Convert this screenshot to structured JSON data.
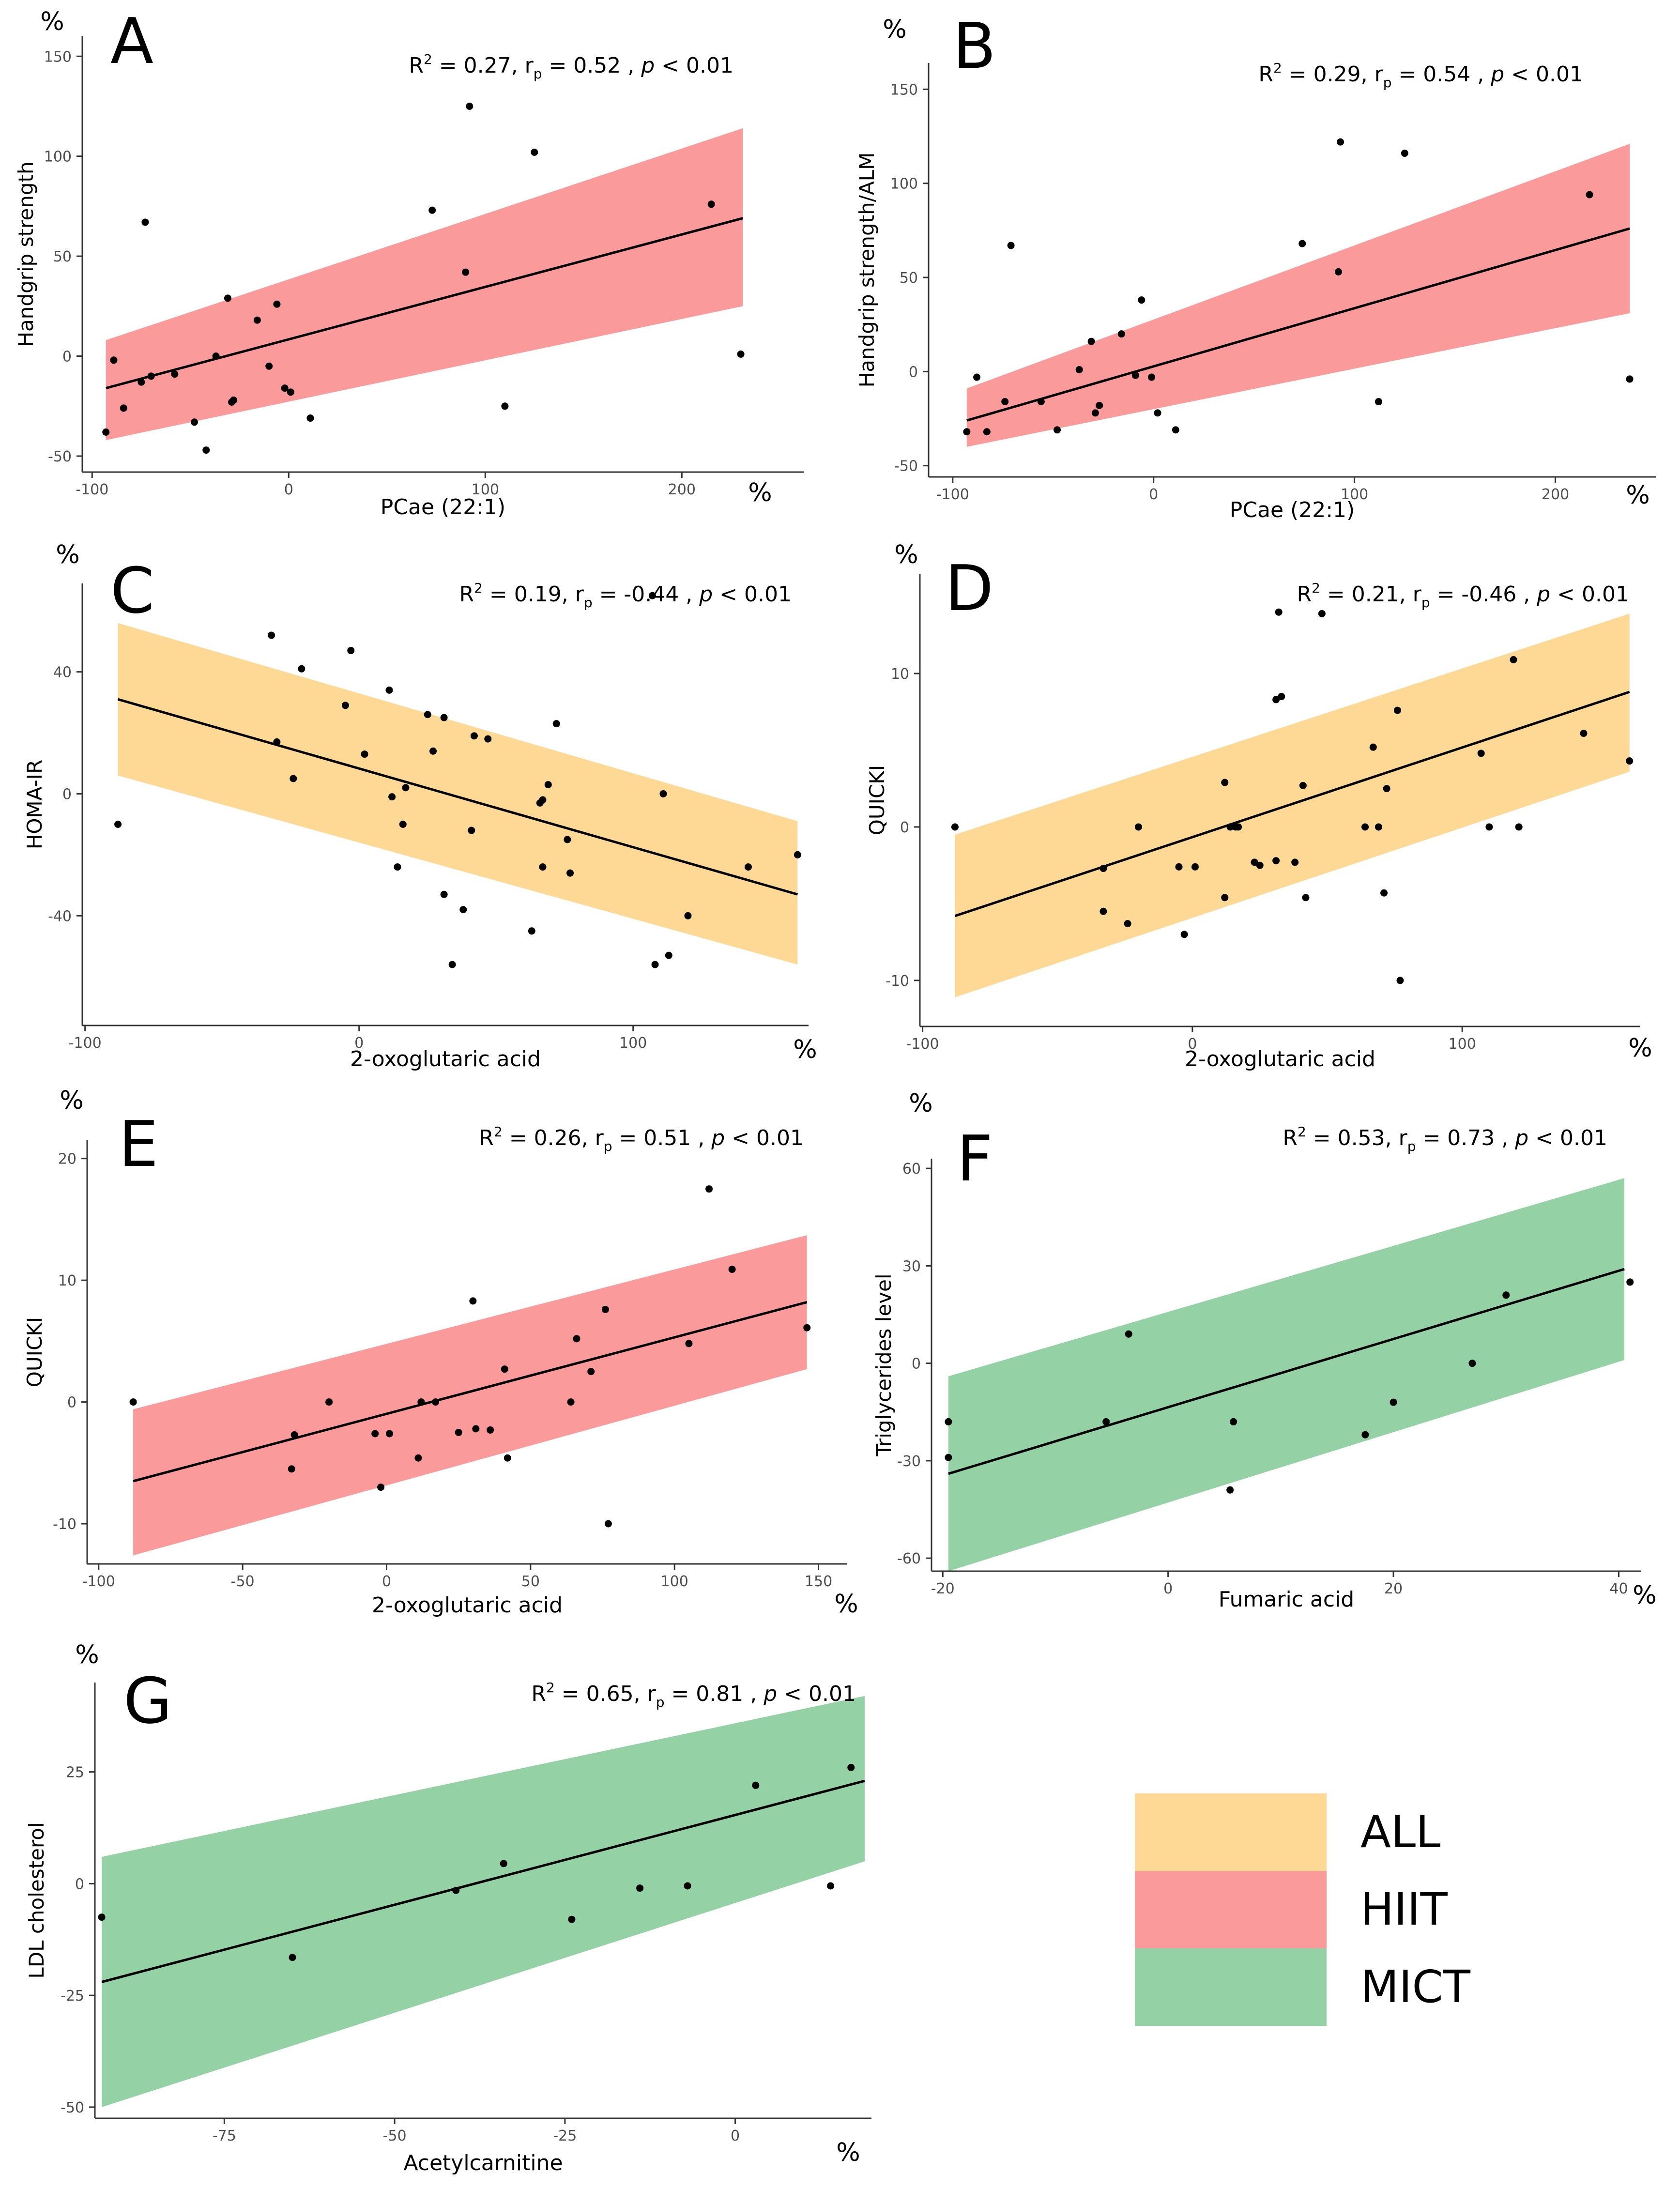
{
  "colors": {
    "ALL": "#FDD995",
    "HIIT": "#FA9A9A",
    "MICT": "#94D2A6",
    "line": "#000000",
    "point": "#000000"
  },
  "legend": {
    "items": [
      {
        "label": "ALL",
        "color": "#FDD995"
      },
      {
        "label": "HIIT",
        "color": "#FA9A9A"
      },
      {
        "label": "MICT",
        "color": "#94D2A6"
      }
    ]
  },
  "chart_data": [
    {
      "type": "scatter",
      "panel": "A",
      "group": "HIIT",
      "title": "",
      "xlabel": "PCae (22:1)",
      "ylabel": "Handgrip strength",
      "unit_x": "%",
      "unit_y": "%",
      "stats": {
        "r2": "0.27",
        "rp": "0.52",
        "p": "< 0.01"
      },
      "xlim": [
        -105,
        262
      ],
      "ylim": [
        -58,
        160
      ],
      "xticks": [
        -100,
        0,
        100,
        200
      ],
      "yticks": [
        -50,
        0,
        50,
        100,
        150
      ],
      "fit": {
        "x": [
          -93,
          231
        ],
        "y": [
          -16,
          69
        ]
      },
      "band": {
        "x": [
          -93,
          231
        ],
        "upper": [
          8,
          114
        ],
        "lower": [
          -42,
          25
        ]
      },
      "points": {
        "x": [
          -93,
          -89,
          -84,
          -75,
          -73,
          -70,
          -58,
          -48,
          -42,
          -37,
          -31,
          -29,
          -28,
          -16,
          -10,
          -6,
          -2,
          1,
          11,
          73,
          90,
          92,
          110,
          125,
          215,
          230
        ],
        "y": [
          -38,
          -2,
          -26,
          -13,
          67,
          -10,
          -9,
          -33,
          -47,
          0,
          29,
          -23,
          -22,
          18,
          -5,
          26,
          -16,
          -18,
          -31,
          73,
          42,
          125,
          -25,
          102,
          76,
          1
        ]
      }
    },
    {
      "type": "scatter",
      "panel": "B",
      "group": "HIIT",
      "title": "",
      "xlabel": "PCae (22:1)",
      "ylabel": "Handgrip strength/ALM",
      "unit_x": "%",
      "unit_y": "%",
      "stats": {
        "r2": "0.29",
        "rp": "0.54",
        "p": "< 0.01"
      },
      "xlim": [
        -112,
        250
      ],
      "ylim": [
        -56,
        164
      ],
      "xticks": [
        -100,
        0,
        100,
        200
      ],
      "yticks": [
        -50,
        0,
        50,
        100,
        150
      ],
      "fit": {
        "x": [
          -93,
          237
        ],
        "y": [
          -26,
          76
        ]
      },
      "band": {
        "x": [
          -93,
          237
        ],
        "upper": [
          -9,
          121
        ],
        "lower": [
          -40,
          31
        ]
      },
      "points": {
        "x": [
          -93,
          -88,
          -83,
          -74,
          -71,
          -56,
          -48,
          -37,
          -31,
          -29,
          -27,
          -16,
          -9,
          -6,
          -1,
          2,
          11,
          74,
          92,
          93,
          112,
          125,
          217,
          237
        ],
        "y": [
          -32,
          -3,
          -32,
          -16,
          67,
          -16,
          -31,
          1,
          16,
          -22,
          -18,
          20,
          -2,
          38,
          -3,
          -22,
          -31,
          68,
          53,
          122,
          -16,
          116,
          94,
          -4
        ]
      }
    },
    {
      "type": "scatter",
      "panel": "C",
      "group": "ALL",
      "title": "",
      "xlabel": "2-oxoglutaric acid",
      "ylabel": "HOMA-IR",
      "unit_x": "%",
      "unit_y": "%",
      "stats": {
        "r2": "0.19",
        "rp": "-0.44",
        "p": "< 0.01"
      },
      "xlim": [
        -101,
        164
      ],
      "ylim": [
        -76,
        69
      ],
      "xticks": [
        -100,
        0,
        100
      ],
      "yticks": [
        -40,
        0,
        40
      ],
      "fit": {
        "x": [
          -88,
          160
        ],
        "y": [
          31,
          -33
        ]
      },
      "band": {
        "x": [
          -88,
          160
        ],
        "upper": [
          56,
          -9
        ],
        "lower": [
          6,
          -56
        ]
      },
      "points": {
        "x": [
          -88,
          -32,
          -30,
          -21,
          -24,
          -3,
          -5,
          2,
          11,
          12,
          14,
          16,
          17,
          25,
          27,
          31,
          31,
          34,
          38,
          42,
          41,
          47,
          63,
          66,
          67,
          67,
          69,
          72,
          76,
          77,
          107,
          108,
          111,
          113,
          120,
          142,
          160
        ],
        "y": [
          -10,
          52,
          17,
          41,
          5,
          47,
          29,
          13,
          34,
          -1,
          -24,
          -10,
          2,
          26,
          14,
          25,
          -33,
          -56,
          -38,
          19,
          -12,
          18,
          -45,
          -3,
          -24,
          -2,
          3,
          23,
          -15,
          -26,
          65,
          -56,
          0,
          -53,
          -40,
          -24,
          -20
        ]
      }
    },
    {
      "type": "scatter",
      "panel": "D",
      "group": "ALL",
      "title": "",
      "xlabel": "2-oxoglutaric acid",
      "ylabel": "QUICKI",
      "unit_x": "%",
      "unit_y": "%",
      "stats": {
        "r2": "0.21",
        "rp": "-0.46",
        "p": "< 0.01"
      },
      "xlim": [
        -101,
        166
      ],
      "ylim": [
        -13,
        16.5
      ],
      "xticks": [
        -100,
        0,
        100
      ],
      "yticks": [
        -10,
        0,
        10
      ],
      "fit": {
        "x": [
          -88,
          162
        ],
        "y": [
          -5.8,
          8.8
        ]
      },
      "band": {
        "x": [
          -88,
          162
        ],
        "upper": [
          -0.5,
          13.9
        ],
        "lower": [
          -11.1,
          3.6
        ]
      },
      "points": {
        "x": [
          -88,
          -33,
          -33,
          -24,
          -20,
          -5,
          -3,
          1,
          12,
          12,
          14,
          16,
          17,
          23,
          25,
          32,
          31,
          31,
          33,
          38,
          41,
          42,
          48,
          64,
          67,
          69,
          71,
          72,
          76,
          77,
          107,
          110,
          119,
          121,
          145,
          162
        ],
        "y": [
          0,
          -2.7,
          -5.5,
          -6.3,
          0,
          -2.6,
          -7,
          -2.6,
          -4.6,
          2.9,
          0,
          0,
          0,
          -2.3,
          -2.5,
          14,
          8.3,
          -2.2,
          8.5,
          -2.3,
          2.7,
          -4.6,
          13.9,
          0,
          5.2,
          0,
          -4.3,
          2.5,
          7.6,
          -10,
          4.8,
          0,
          10.9,
          0,
          6.1,
          4.3
        ]
      }
    },
    {
      "type": "scatter",
      "panel": "E",
      "group": "HIIT",
      "title": "",
      "xlabel": "2-oxoglutaric acid",
      "ylabel": "QUICKI",
      "unit_x": "%",
      "unit_y": "%",
      "stats": {
        "r2": "0.26",
        "rp": "0.51",
        "p": "< 0.01"
      },
      "xlim": [
        -104,
        160
      ],
      "ylim": [
        -13.3,
        21.5
      ],
      "xticks": [
        -100,
        -50,
        0,
        50,
        100,
        150
      ],
      "yticks": [
        -10,
        0,
        10,
        20
      ],
      "fit": {
        "x": [
          -88,
          146
        ],
        "y": [
          -6.5,
          8.2
        ]
      },
      "band": {
        "x": [
          -88,
          146
        ],
        "upper": [
          -0.6,
          13.7
        ],
        "lower": [
          -12.6,
          2.7
        ]
      },
      "points": {
        "x": [
          -88,
          -32,
          -33,
          -20,
          -4,
          -2,
          1,
          11,
          12,
          17,
          25,
          30,
          31,
          36,
          41,
          42,
          64,
          66,
          71,
          76,
          77,
          105,
          112,
          120,
          146
        ],
        "y": [
          0,
          -2.7,
          -5.5,
          0,
          -2.6,
          -7,
          -2.6,
          -4.6,
          0,
          0,
          -2.5,
          8.3,
          -2.2,
          -2.3,
          2.7,
          -4.6,
          0,
          5.2,
          2.5,
          7.6,
          -10,
          4.8,
          17.5,
          10.9,
          6.1
        ]
      }
    },
    {
      "type": "scatter",
      "panel": "F",
      "group": "MICT",
      "title": "",
      "xlabel": "Fumaric acid",
      "ylabel": "Triglycerides level",
      "unit_x": "%",
      "unit_y": "%",
      "stats": {
        "r2": "0.53",
        "rp": "0.73",
        "p": "< 0.01"
      },
      "xlim": [
        -21,
        42
      ],
      "ylim": [
        -64,
        63
      ],
      "xticks": [
        -20,
        0,
        20,
        40
      ],
      "yticks": [
        -60,
        -30,
        0,
        30,
        60
      ],
      "fit": {
        "x": [
          -19.5,
          40.5
        ],
        "y": [
          -34,
          29
        ]
      },
      "band": {
        "x": [
          -19.5,
          40.5
        ],
        "upper": [
          -4,
          57
        ],
        "lower": [
          -64,
          1
        ]
      },
      "points": {
        "x": [
          -19.5,
          -19.5,
          -5.5,
          -3.5,
          5.5,
          5.8,
          17.5,
          20,
          27,
          30,
          41
        ],
        "y": [
          -18,
          -29,
          -18,
          9,
          -39,
          -18,
          -22,
          -12,
          0,
          21,
          25
        ]
      }
    },
    {
      "type": "scatter",
      "panel": "G",
      "group": "MICT",
      "title": "",
      "xlabel": "Acetylcarnitine",
      "ylabel": "LDL cholesterol",
      "unit_x": "%",
      "unit_y": "%",
      "stats": {
        "r2": "0.65",
        "rp": "0.81",
        "p": "< 0.01"
      },
      "xlim": [
        -94,
        20
      ],
      "ylim": [
        -52.5,
        45
      ],
      "xticks": [
        -75,
        -50,
        -25,
        0
      ],
      "yticks": [
        -50,
        -25,
        0,
        25
      ],
      "fit": {
        "x": [
          -93,
          19
        ],
        "y": [
          -22,
          23
        ]
      },
      "band": {
        "x": [
          -93,
          19
        ],
        "upper": [
          6,
          42
        ],
        "lower": [
          -50,
          5
        ]
      },
      "points": {
        "x": [
          -93,
          -65,
          -41,
          -34,
          -24,
          -14,
          -7,
          3,
          14,
          17
        ],
        "y": [
          -7.5,
          -16.5,
          -1.5,
          4.5,
          -8,
          -1,
          -0.5,
          22,
          -0.5,
          26
        ]
      }
    }
  ]
}
